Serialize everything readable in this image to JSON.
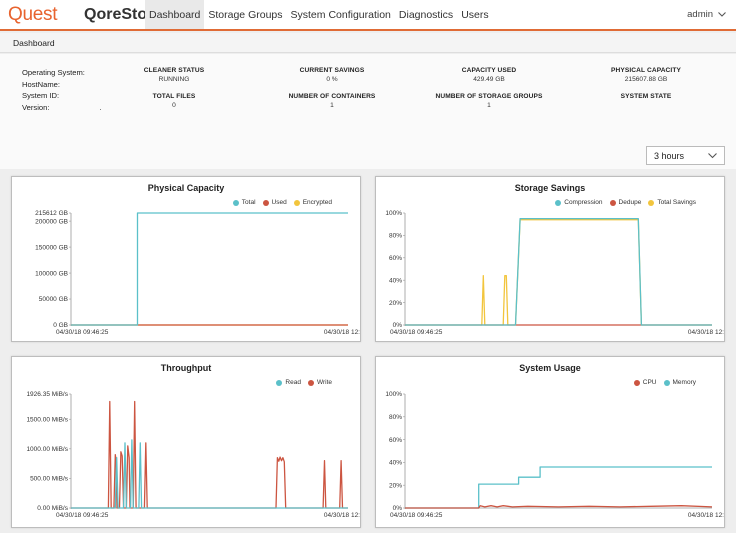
{
  "nav": {
    "logo": "Quest",
    "product": "QoreStor",
    "tabs": [
      "Dashboard",
      "Storage Groups",
      "System Configuration",
      "Diagnostics",
      "Users"
    ],
    "active_tab": "Dashboard",
    "user": "admin"
  },
  "breadcrumb": "Dashboard",
  "system_info": {
    "os_label": "Operating System:",
    "hostname_label": "HostName:",
    "system_id_label": "System ID:",
    "version_label": "Version:",
    "version_value": "."
  },
  "stats": {
    "cleaner_status": {
      "label": "CLEANER STATUS",
      "value": "RUNNING"
    },
    "current_savings": {
      "label": "CURRENT SAVINGS",
      "value": "0 %"
    },
    "capacity_used": {
      "label": "CAPACITY USED",
      "value": "429.49 GB"
    },
    "physical_capacity": {
      "label": "PHYSICAL CAPACITY",
      "value": "215607.88 GB"
    },
    "total_files": {
      "label": "TOTAL FILES",
      "value": "0"
    },
    "num_containers": {
      "label": "NUMBER OF CONTAINERS",
      "value": "1"
    },
    "num_storage_groups": {
      "label": "NUMBER OF STORAGE GROUPS",
      "value": "1"
    },
    "system_state": {
      "label": "SYSTEM STATE",
      "value": ""
    }
  },
  "time_range": {
    "selected": "3 hours"
  },
  "icons": {
    "user_menu": "chevron-down-icon",
    "time_range": "chevron-down-icon"
  },
  "colors": {
    "brand": "#e8632e",
    "teal": "#5bc0c9",
    "red": "#cc5541",
    "yellow": "#f2c53d"
  },
  "chart_data": [
    {
      "id": "physical",
      "type": "line",
      "title": "Physical Capacity",
      "yticks": [
        "215612 GB",
        "200000 GB",
        "150000 GB",
        "100000 GB",
        "50000 GB",
        "0 GB"
      ],
      "ytick_values": [
        215612,
        200000,
        150000,
        100000,
        50000,
        0
      ],
      "ylim": [
        0,
        215612
      ],
      "xlim": [
        0,
        100
      ],
      "xlabels": [
        "04/30/18 09:46:25",
        "04/30/18 12:"
      ],
      "series": [
        {
          "name": "Total",
          "color": "#5bc0c9",
          "points": [
            [
              0,
              0
            ],
            [
              24,
              0
            ],
            [
              24,
              215612
            ],
            [
              100,
              215612
            ]
          ]
        },
        {
          "name": "Used",
          "color": "#cc5541",
          "points": [
            [
              0,
              0
            ],
            [
              100,
              0
            ]
          ]
        },
        {
          "name": "Encrypted",
          "color": "#f2c53d",
          "points": [
            [
              0,
              0
            ],
            [
              100,
              0
            ]
          ]
        }
      ]
    },
    {
      "id": "savings",
      "type": "line",
      "title": "Storage Savings",
      "yticks": [
        "100%",
        "80%",
        "60%",
        "40%",
        "20%",
        "0%"
      ],
      "ytick_values": [
        100,
        80,
        60,
        40,
        20,
        0
      ],
      "ylim": [
        0,
        100
      ],
      "xlim": [
        0,
        100
      ],
      "xlabels": [
        "04/30/18 09:46:25",
        "04/30/18 12:"
      ],
      "series": [
        {
          "name": "Compression",
          "color": "#5bc0c9",
          "points": [
            [
              0,
              0
            ],
            [
              36,
              0
            ],
            [
              37.5,
              95
            ],
            [
              76,
              95
            ],
            [
              77,
              0
            ],
            [
              100,
              0
            ]
          ]
        },
        {
          "name": "Dedupe",
          "color": "#cc5541",
          "points": [
            [
              0,
              0
            ],
            [
              100,
              0
            ]
          ]
        },
        {
          "name": "Total Savings",
          "color": "#f2c53d",
          "points": [
            [
              0,
              0
            ],
            [
              25,
              0
            ],
            [
              25.5,
              44
            ],
            [
              26,
              0
            ],
            [
              32,
              0
            ],
            [
              32.5,
              44
            ],
            [
              33,
              44
            ],
            [
              33.5,
              0
            ],
            [
              36,
              0
            ],
            [
              37.5,
              94
            ],
            [
              76,
              94
            ],
            [
              77,
              0
            ],
            [
              100,
              0
            ]
          ]
        }
      ]
    },
    {
      "id": "throughput",
      "type": "line",
      "title": "Throughput",
      "yticks": [
        "1926.35 MiB/s",
        "1500.00 MiB/s",
        "1000.00 MiB/s",
        "500.00 MiB/s",
        "0.00 MiB/s"
      ],
      "ytick_values": [
        1926.35,
        1500,
        1000,
        500,
        0
      ],
      "ylim": [
        0,
        1926.35
      ],
      "xlim": [
        0,
        100
      ],
      "xlabels": [
        "04/30/18 09:46:25",
        "04/30/18 12:"
      ],
      "series": [
        {
          "name": "Read",
          "color": "#5bc0c9",
          "points": [
            [
              0,
              0
            ],
            [
              16,
              0
            ],
            [
              16.5,
              850
            ],
            [
              17,
              0
            ],
            [
              19,
              0
            ],
            [
              19.5,
              1100
            ],
            [
              20,
              0
            ],
            [
              21.5,
              0
            ],
            [
              22,
              1150
            ],
            [
              22.5,
              0
            ],
            [
              24.5,
              0
            ],
            [
              25,
              1100
            ],
            [
              25.5,
              0
            ],
            [
              100,
              0
            ]
          ]
        },
        {
          "name": "Write",
          "color": "#cc5541",
          "points": [
            [
              0,
              0
            ],
            [
              13.5,
              0
            ],
            [
              14,
              1800
            ],
            [
              14.5,
              0
            ],
            [
              15.5,
              0
            ],
            [
              16,
              900
            ],
            [
              16.3,
              800
            ],
            [
              16.6,
              0
            ],
            [
              17.5,
              0
            ],
            [
              18,
              950
            ],
            [
              18.5,
              880
            ],
            [
              19,
              0
            ],
            [
              20,
              0
            ],
            [
              20.5,
              1050
            ],
            [
              21,
              850
            ],
            [
              21.3,
              0
            ],
            [
              22.5,
              0
            ],
            [
              23,
              1800
            ],
            [
              23.5,
              0
            ],
            [
              26.5,
              0
            ],
            [
              27,
              1100
            ],
            [
              27.5,
              0
            ],
            [
              74,
              0
            ],
            [
              74.5,
              850
            ],
            [
              75,
              790
            ],
            [
              75.5,
              860
            ],
            [
              76,
              800
            ],
            [
              76.5,
              850
            ],
            [
              77,
              780
            ],
            [
              77.5,
              0
            ],
            [
              91,
              0
            ],
            [
              91.5,
              800
            ],
            [
              92,
              0
            ],
            [
              97,
              0
            ],
            [
              97.5,
              800
            ],
            [
              98,
              0
            ],
            [
              100,
              0
            ]
          ]
        }
      ]
    },
    {
      "id": "usage",
      "type": "line",
      "title": "System Usage",
      "yticks": [
        "100%",
        "80%",
        "60%",
        "40%",
        "20%",
        "0%"
      ],
      "ytick_values": [
        100,
        80,
        60,
        40,
        20,
        0
      ],
      "ylim": [
        0,
        100
      ],
      "xlim": [
        0,
        100
      ],
      "xlabels": [
        "04/30/18 09:46:25",
        "04/30/18 12:"
      ],
      "series": [
        {
          "name": "CPU",
          "color": "#cc5541",
          "points": [
            [
              0,
              0
            ],
            [
              24,
              0
            ],
            [
              24.5,
              2
            ],
            [
              26,
              1
            ],
            [
              28,
              2
            ],
            [
              30,
              1
            ],
            [
              32,
              2
            ],
            [
              35,
              1
            ],
            [
              40,
              1.5
            ],
            [
              50,
              1
            ],
            [
              60,
              1.5
            ],
            [
              70,
              1
            ],
            [
              80,
              1.5
            ],
            [
              90,
              2
            ],
            [
              100,
              1
            ]
          ]
        },
        {
          "name": "Memory",
          "color": "#5bc0c9",
          "points": [
            [
              0,
              0
            ],
            [
              24,
              0
            ],
            [
              24,
              21
            ],
            [
              37,
              21
            ],
            [
              37,
              27
            ],
            [
              44,
              27
            ],
            [
              44,
              36
            ],
            [
              100,
              36
            ]
          ]
        }
      ]
    }
  ]
}
